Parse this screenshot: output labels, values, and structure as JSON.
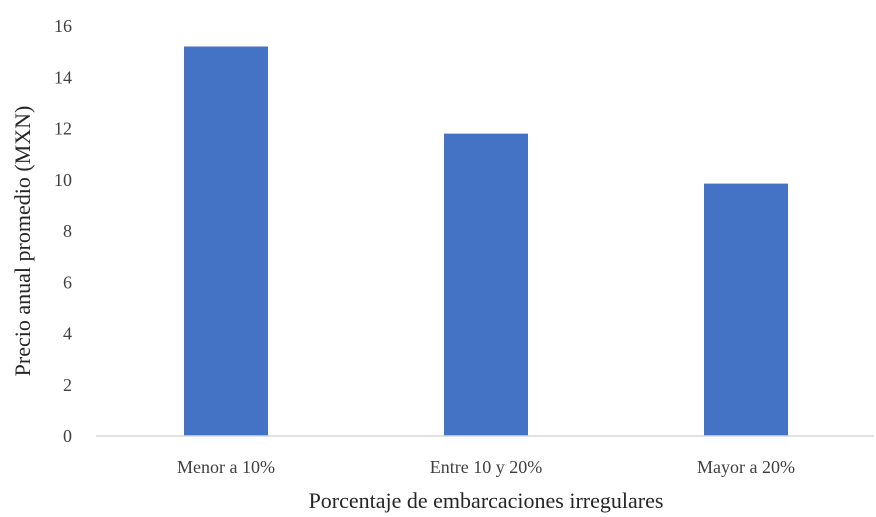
{
  "chart_data": {
    "type": "bar",
    "categories": [
      "Menor a 10%",
      "Entre 10 y 20%",
      "Mayor a 20%"
    ],
    "values": [
      15.2,
      11.8,
      9.85
    ],
    "title": "",
    "xlabel": "Porcentaje de embarcaciones irregulares",
    "ylabel": "Precio anual promedio (MXN)",
    "ylim": [
      0,
      16
    ],
    "yticks": [
      "0",
      "2",
      "4",
      "6",
      "8",
      "10",
      "12",
      "14",
      "16"
    ],
    "grid": false,
    "legend": "none",
    "colors": {
      "bar": "#4472C4",
      "axis": "#D9D9D9"
    }
  }
}
